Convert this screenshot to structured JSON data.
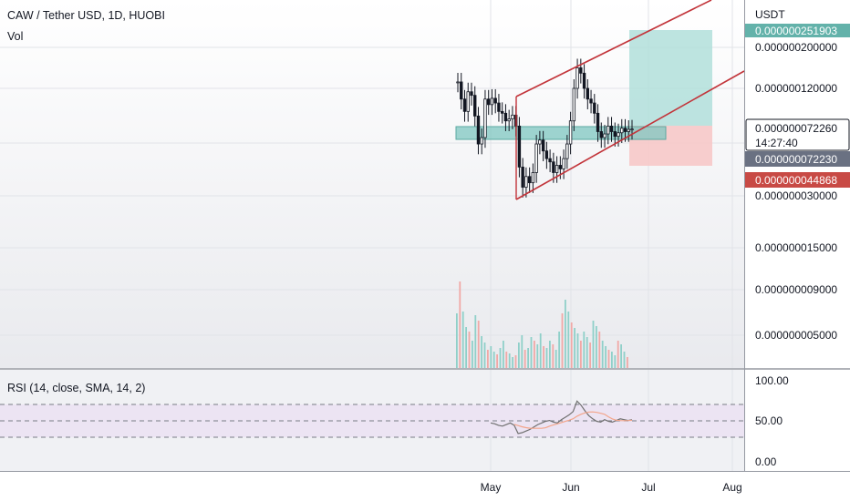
{
  "header": {
    "symbol": "CAW / Tether USD, 1D, HUOBI",
    "volume_label": "Vol"
  },
  "rsi_panel": {
    "title": "RSI (14, close, SMA, 14, 2)",
    "ticks": [
      "100.00",
      "50.00",
      "0.00"
    ],
    "values": [
      100,
      50,
      0
    ],
    "upper_band": 70,
    "lower_band": 30
  },
  "colors": {
    "up": "#26a69a",
    "down": "#ef5350",
    "candle": "#131722",
    "channel": "#c2343a",
    "zone_fill": "#7fc7c0",
    "target_fill": "#b2dfdb",
    "stop_fill": "#f7c6c5",
    "rsi_line": "#707070",
    "rsi_ma": "#f3a58a",
    "tag_green": "#63b2aa",
    "tag_gray": "#6a7182",
    "tag_red": "#c84a45"
  },
  "chart_data": {
    "type": "candlestick",
    "title": "CAW / Tether USD, 1D, HUOBI",
    "y_unit": "USDT",
    "y_scale": "log",
    "y_ticks": [
      "0.000000200000",
      "0.000000120000",
      "0.000000030000",
      "0.000000015000",
      "0.000000009000",
      "0.000000005000"
    ],
    "y_tick_values": [
      2e-07,
      1.2e-07,
      3e-08,
      1.5e-08,
      9e-09,
      5e-09
    ],
    "x_ticks": [
      "May",
      "Jun",
      "Jul",
      "Aug"
    ],
    "price_tags": [
      {
        "label": "0.000000251903",
        "role": "target",
        "value": 2.51903e-07
      },
      {
        "label": "0.000000072260",
        "role": "last price",
        "value": 7.226e-08
      },
      {
        "label": "14:27:40",
        "role": "countdown"
      },
      {
        "label": "0.000000072230",
        "role": "entry",
        "value": 7.223e-08
      },
      {
        "label": "0.000000044868",
        "role": "stop",
        "value": 4.4868e-08
      }
    ],
    "close_series_approx": [
      1.3e-07,
      1.05e-07,
      9e-08,
      1.15e-07,
      1.1e-07,
      8.5e-08,
      6e-08,
      6.5e-08,
      1.05e-07,
      9.8e-08,
      1.06e-07,
      1e-07,
      9e-08,
      8.8e-08,
      8e-08,
      8.2e-08,
      8.6e-08,
      7.5e-08,
      4.5e-08,
      3.5e-08,
      4e-08,
      3.7e-08,
      4.2e-08,
      6e-08,
      6.3e-08,
      5.5e-08,
      5e-08,
      4.8e-08,
      4.2e-08,
      4.6e-08,
      4.4e-08,
      5e-08,
      6e-08,
      8e-08,
      1.2e-07,
      1.55e-07,
      1.45e-07,
      1.2e-07,
      1.05e-07,
      1e-07,
      8.8e-08,
      7e-08,
      6.5e-08,
      6.8e-08,
      7.5e-08,
      7e-08,
      6.6e-08,
      6.9e-08,
      7.3e-08,
      7e-08,
      7.2e-08,
      7.23e-08
    ],
    "rsi_approx": [
      48,
      47,
      45,
      44,
      46,
      48,
      45,
      35,
      36,
      38,
      40,
      43,
      46,
      48,
      50,
      51,
      49,
      48,
      52,
      55,
      58,
      62,
      75,
      70,
      63,
      57,
      53,
      50,
      49,
      52,
      50,
      49,
      51,
      53,
      52,
      51,
      52
    ]
  }
}
